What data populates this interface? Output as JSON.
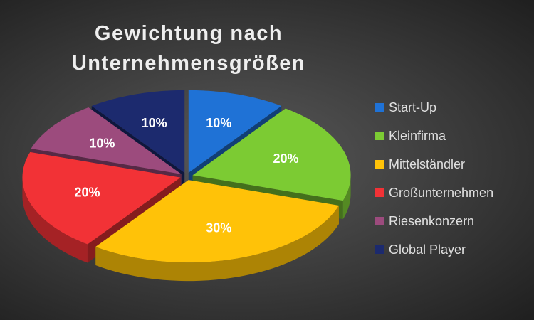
{
  "chart_data": {
    "type": "pie3d",
    "title": "Gewichtung nach Unternehmensgrößen",
    "categories": [
      "Start-Up",
      "Kleinfirma",
      "Mittelständler",
      "Großunternehmen",
      "Riesenkonzern",
      "Global Player"
    ],
    "values": [
      10,
      20,
      30,
      20,
      10,
      10
    ],
    "value_labels": [
      "10%",
      "20%",
      "30%",
      "20%",
      "10%",
      "10%"
    ],
    "colors": [
      "#1f72d6",
      "#7ccb33",
      "#ffc208",
      "#f23236",
      "#9c4b7d",
      "#1c2a6e"
    ],
    "legend": "right"
  }
}
